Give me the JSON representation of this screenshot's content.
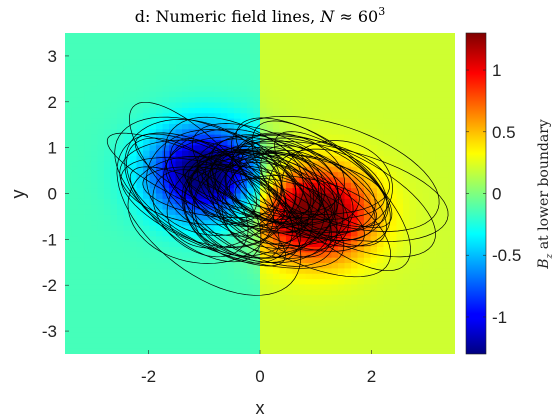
{
  "chart_data": {
    "type": "heatmap",
    "title": "d: Numeric field lines, N ≈ 60³",
    "title_parts": {
      "prefix": "d: Numeric field lines, ",
      "var": "N",
      "approx": " ≈ ",
      "base": "60",
      "exp": "3"
    },
    "xlabel": "x",
    "ylabel": "y",
    "xlim": [
      -3.5,
      3.5
    ],
    "ylim": [
      -3.5,
      3.5
    ],
    "xticks": [
      -2,
      0,
      2
    ],
    "yticks": [
      3,
      2,
      1,
      0,
      -1,
      -2,
      -3
    ],
    "colorbar": {
      "label_var": "B",
      "label_sub": "z",
      "label_rest": " at lower boundary",
      "lim": [
        -1.3,
        1.3
      ],
      "ticks": [
        1,
        0.5,
        0,
        -0.5,
        -1
      ],
      "colormap": "jet"
    },
    "field": {
      "background_left": -0.15,
      "background_right": 0.2,
      "sources": [
        {
          "name": "negative-pole",
          "x": -1.0,
          "y": 0.45,
          "amplitude": -1.3
        },
        {
          "name": "positive-pole",
          "x": 1.0,
          "y": -0.45,
          "amplitude": 1.3
        }
      ]
    },
    "field_lines": {
      "count": 60,
      "color": "#000000"
    }
  }
}
